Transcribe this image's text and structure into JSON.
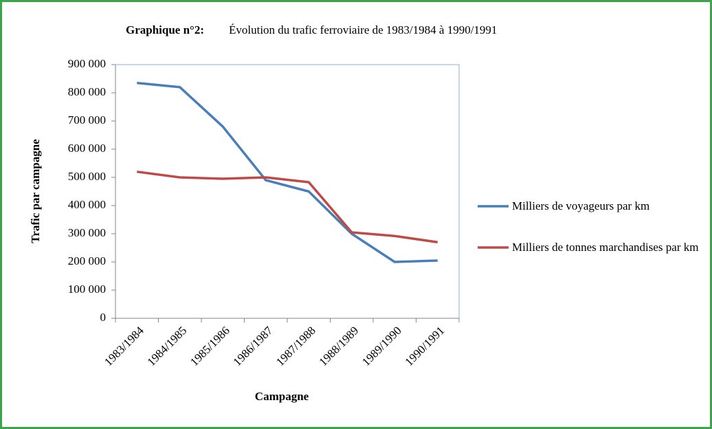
{
  "chart_data": {
    "type": "line",
    "title_bold": "Graphique  n°2:",
    "title": "Évolution du trafic ferroviaire de 1983/1984  à 1990/1991",
    "x_label": "Campagne",
    "y_label": "Trafic par campagne",
    "categories": [
      "1983/1984",
      "1984/1985",
      "1985/1986",
      "1986/1987",
      "1987/1988",
      "1988/1989",
      "1989/1990",
      "1990/1991"
    ],
    "series": [
      {
        "name": "Milliers de voyageurs par km",
        "color": "#4a7ebb",
        "values": [
          835000,
          820000,
          680000,
          490000,
          450000,
          300000,
          200000,
          205000
        ]
      },
      {
        "name": "Milliers de tonnes marchandises par km",
        "color": "#be4b48",
        "values": [
          520000,
          500000,
          495000,
          500000,
          483000,
          305000,
          292000,
          270000
        ]
      }
    ],
    "ylim": [
      0,
      900000
    ],
    "yticks": [
      {
        "value": 0,
        "label": "0"
      },
      {
        "value": 100000,
        "label": "100 000"
      },
      {
        "value": 200000,
        "label": "200 000"
      },
      {
        "value": 300000,
        "label": "300 000"
      },
      {
        "value": 400000,
        "label": "400 000"
      },
      {
        "value": 500000,
        "label": "500 000"
      },
      {
        "value": 600000,
        "label": "600 000"
      },
      {
        "value": 700000,
        "label": "700 000"
      },
      {
        "value": 800000,
        "label": "800 000"
      },
      {
        "value": 900000,
        "label": "900 000"
      }
    ],
    "legend": "right"
  }
}
